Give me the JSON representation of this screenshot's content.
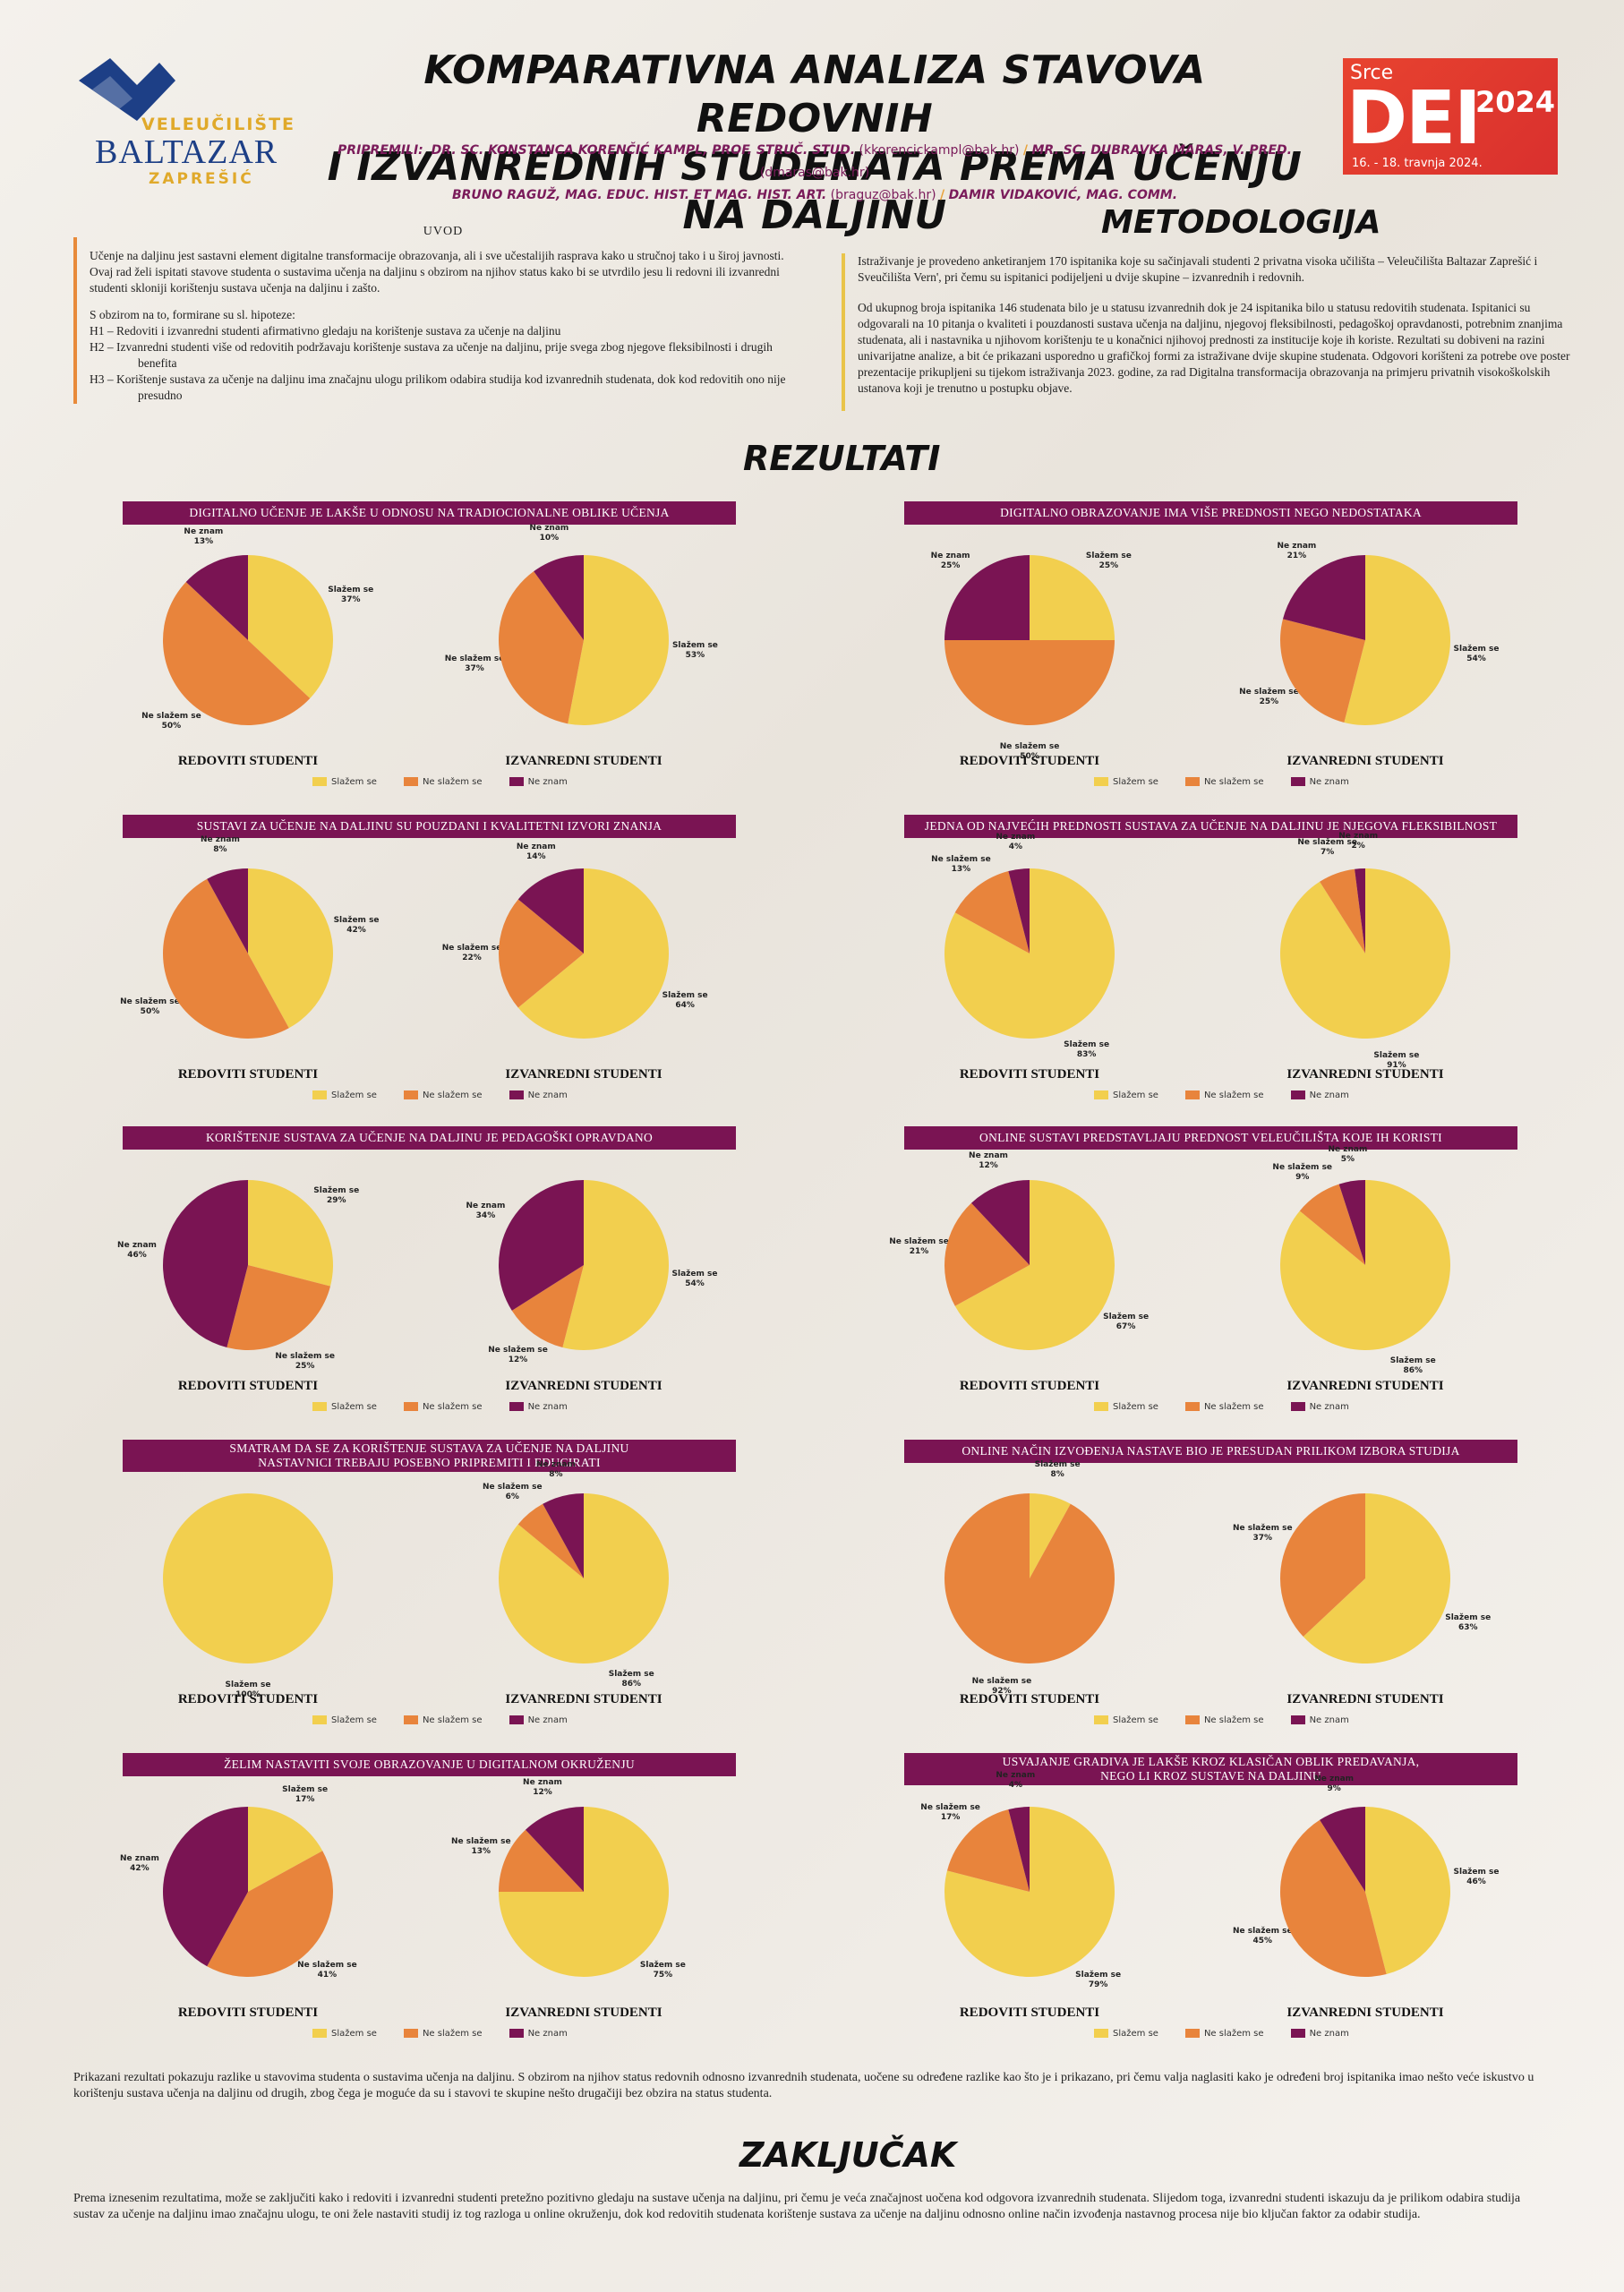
{
  "header": {
    "title_line1": "KOMPARATIVNA ANALIZA STAVOVA REDOVNIH",
    "title_line2": "I IZVANREDNIH STUDENATA PREMA UČENJU NA DALJINU",
    "prepared_label": "PRIPREMILI:",
    "author1": "DR. SC. KONSTANCA KORENČIĆ KAMPL, PROF. STRUČ. STUD.",
    "author1_email": "(kkorencickampl@bak.hr)",
    "author2": "MR. SC. DUBRAVKA MARAS, V. PRED.",
    "author2_email": "(dmaras@bak.hr)",
    "author3": "BRUNO RAGUŽ, MAG. EDUC. HIST. ET MAG. HIST. ART.",
    "author3_email": "(braguz@bak.hr)",
    "author4": "DAMIR VIDAKOVIĆ, MAG. COMM.",
    "separator": "/"
  },
  "logo": {
    "line1": "VELEUČILIŠTE",
    "line2": "BALTAZAR",
    "line3": "ZAPREŠIĆ"
  },
  "dei_badge": {
    "srce": "Srce",
    "dei": "DEI",
    "year": "2024",
    "dates": "16. - 18. travnja 2024."
  },
  "intro": {
    "heading": "UVOD",
    "p1": "Učenje na daljinu jest sastavni element digitalne transformacije obrazovanja, ali i sve učestalijih rasprava kako u stručnoj tako i u široj javnosti. Ovaj rad želi ispitati stavove studenta o sustavima učenja na daljinu s obzirom na njihov status kako bi se utvrdilo jesu li redovni ili izvanredni studenti skloniji korištenju sustava učenja na daljinu i zašto.",
    "p2": "S obzirom na to, formirane su sl. hipoteze:",
    "h1": "H1 – Redoviti i izvanredni studenti afirmativno gledaju na korištenje sustava za učenje na daljinu",
    "h2": "H2 – Izvanredni studenti više od redovitih podržavaju korištenje sustava za učenje na daljinu, prije svega zbog njegove fleksibilnosti i drugih benefita",
    "h3": "H3 – Korištenje sustava za učenje na daljinu ima značajnu ulogu prilikom odabira studija kod izvanrednih studenata, dok kod redovitih ono nije presudno"
  },
  "methodology": {
    "heading": "METODOLOGIJA",
    "p1": "Istraživanje je provedeno anketiranjem 170 ispitanika koje su sačinjavali studenti 2 privatna visoka učilišta – Veleučilišta Baltazar Zaprešić i Sveučilišta Vern', pri čemu su ispitanici podijeljeni u dvije skupine – izvanrednih i redovnih.",
    "p2": "Od ukupnog broja ispitanika 146 studenata bilo je u statusu izvanrednih dok je 24 ispitanika bilo u statusu redovitih studenata. Ispitanici su odgovarali na 10 pitanja o kvaliteti i pouzdanosti sustava učenja na daljinu, njegovoj fleksibilnosti, pedagoškoj opravdanosti, potrebnim znanjima studenata, ali i nastavnika u njihovom korištenju te u konačnici njihovoj prednosti za institucije koje ih koriste. Rezultati su dobiveni na razini univarijatne analize, a bit će prikazani usporedno u grafičkoj formi za istraživane dvije skupine studenata. Odgovori korišteni za potrebe ove poster prezentacije prikupljeni su tijekom istraživanja 2023. godine, za rad Digitalna transformacija obrazovanja na primjeru privatnih visokoškolskih ustanova koji je trenutno u postupku objave."
  },
  "results_heading": "REZULTATI",
  "group_labels": {
    "regular": "REDOVITI STUDENTI",
    "parttime": "IZVANREDNI STUDENTI"
  },
  "legend": [
    "Slažem se",
    "Ne slažem se",
    "Ne znam"
  ],
  "colors": {
    "agree": "#f2cf4e",
    "disagree": "#e8843c",
    "dunno": "#7a1453",
    "banner": "#7a1453"
  },
  "chart_data": [
    {
      "type": "pie",
      "title": "DIGITALNO UČENJE JE LAKŠE U ODNOSU NA TRADIOCIONALNE OBLIKE UČENJA",
      "categories": [
        "Slažem se",
        "Ne slažem se",
        "Ne znam"
      ],
      "regular": [
        37,
        50,
        13
      ],
      "parttime": [
        53,
        37,
        10
      ]
    },
    {
      "type": "pie",
      "title": "DIGITALNO OBRAZOVANJE IMA VIŠE PREDNOSTI NEGO NEDOSTATAKA",
      "categories": [
        "Slažem se",
        "Ne slažem se",
        "Ne znam"
      ],
      "regular": [
        25,
        50,
        25
      ],
      "parttime": [
        54,
        25,
        21
      ]
    },
    {
      "type": "pie",
      "title": "SUSTAVI ZA UČENJE NA DALJINU SU POUZDANI I KVALITETNI IZVORI ZNANJA",
      "categories": [
        "Slažem se",
        "Ne slažem se",
        "Ne znam"
      ],
      "regular": [
        42,
        50,
        8
      ],
      "parttime": [
        64,
        22,
        14
      ]
    },
    {
      "type": "pie",
      "title": "JEDNA OD NAJVEĆIH PREDNOSTI SUSTAVA ZA UČENJE NA DALJINU JE NJEGOVA FLEKSIBILNOST",
      "categories": [
        "Slažem se",
        "Ne slažem se",
        "Ne znam"
      ],
      "regular": [
        83,
        13,
        4
      ],
      "parttime": [
        91,
        7,
        2
      ]
    },
    {
      "type": "pie",
      "title": "KORIŠTENJE SUSTAVA ZA UČENJE NA DALJINU JE PEDAGOŠKI OPRAVDANO",
      "categories": [
        "Slažem se",
        "Ne slažem se",
        "Ne znam"
      ],
      "regular": [
        29,
        25,
        46
      ],
      "parttime": [
        54,
        12,
        34
      ]
    },
    {
      "type": "pie",
      "title": "ONLINE SUSTAVI PREDSTAVLJAJU PREDNOST VELEUČILIŠTA KOJE IH KORISTI",
      "categories": [
        "Slažem se",
        "Ne slažem se",
        "Ne znam"
      ],
      "regular": [
        67,
        21,
        12
      ],
      "parttime": [
        86,
        9,
        5
      ]
    },
    {
      "type": "pie",
      "title": "SMATRAM DA SE ZA KORIŠTENJE SUSTAVA ZA UČENJE NA DALJINU|NASTAVNICI TREBAJU POSEBNO PRIPREMITI I EDUCIRATI",
      "categories": [
        "Slažem se",
        "Ne slažem se",
        "Ne znam"
      ],
      "regular": [
        100,
        0,
        0
      ],
      "parttime": [
        86,
        6,
        8
      ]
    },
    {
      "type": "pie",
      "title": "ONLINE NAČIN IZVOĐENJA NASTAVE BIO JE PRESUDAN PRILIKOM IZBORA STUDIJA",
      "categories": [
        "Slažem se",
        "Ne slažem se",
        "Ne znam"
      ],
      "regular": [
        8,
        92,
        0
      ],
      "parttime": [
        63,
        37,
        0
      ]
    },
    {
      "type": "pie",
      "title": "ŽELIM NASTAVITI SVOJE OBRAZOVANJE U DIGITALNOM OKRUŽENJU",
      "categories": [
        "Slažem se",
        "Ne slažem se",
        "Ne znam"
      ],
      "regular": [
        17,
        41,
        42
      ],
      "parttime": [
        75,
        13,
        12
      ]
    },
    {
      "type": "pie",
      "title": "USVAJANJE GRADIVA JE LAKŠE KROZ KLASIČAN OBLIK PREDAVANJA,|NEGO LI KROZ SUSTAVE NA DALJINU",
      "categories": [
        "Slažem se",
        "Ne slažem se",
        "Ne znam"
      ],
      "regular": [
        79,
        17,
        4
      ],
      "parttime": [
        46,
        45,
        9
      ]
    }
  ],
  "summary": "Prikazani rezultati pokazuju razlike u stavovima studenta o sustavima učenja na daljinu. S obzirom na njihov status redovnih odnosno izvanrednih studenata, uočene su određene razlike kao što je i prikazano, pri čemu valja naglasiti kako je određeni broj ispitanika imao nešto veće iskustvo u korištenju sustava učenja na daljinu od drugih, zbog čega je moguće da su i stavovi te skupine nešto drugačiji bez obzira na status studenta.",
  "conclusion": {
    "heading": "ZAKLJUČAK",
    "text": "Prema iznesenim rezultatima, može se zaključiti kako i redoviti i izvanredni studenti pretežno pozitivno gledaju na sustave učenja na daljinu, pri čemu je veća značajnost uočena kod odgovora izvanrednih studenata. Slijedom toga, izvanredni studenti iskazuju da je prilikom odabira studija sustav za učenje na daljinu imao značajnu ulogu, te oni žele nastaviti studij iz tog razloga u online okruženju, dok kod redovitih studenata korištenje sustava za učenje na daljinu odnosno online način izvođenja nastavnog procesa nije bio ključan faktor za odabir studija."
  }
}
